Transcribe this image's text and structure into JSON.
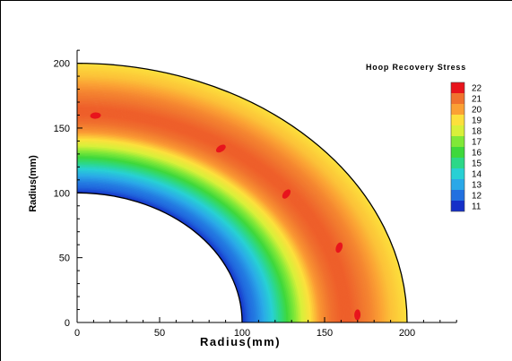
{
  "chart_data": {
    "type": "contour",
    "title": "Hoop Recovery Stress",
    "xlabel": "Radius(mm)",
    "ylabel": "Radius(mm)",
    "xlim": [
      0,
      230
    ],
    "ylim": [
      0,
      210
    ],
    "x_ticks": [
      0,
      50,
      100,
      150,
      200
    ],
    "y_ticks": [
      0,
      50,
      100,
      150,
      200
    ],
    "x_tick_labels": [
      "0",
      "50",
      "100",
      "150",
      "200"
    ],
    "y_tick_labels": [
      "0",
      "50",
      "100",
      "150",
      "200"
    ],
    "domain": {
      "shape": "quarter-annulus",
      "inner_radius": 100,
      "outer_radius": 200
    },
    "legend": {
      "placement": "right",
      "levels": [
        {
          "label": "22",
          "value": 22,
          "color": "#e8141c"
        },
        {
          "label": "21",
          "value": 21,
          "color": "#f0722e"
        },
        {
          "label": "20",
          "value": 20,
          "color": "#fba034"
        },
        {
          "label": "19",
          "value": 19,
          "color": "#fce03c"
        },
        {
          "label": "18",
          "value": 18,
          "color": "#d8f03a"
        },
        {
          "label": "17",
          "value": 17,
          "color": "#80e838"
        },
        {
          "label": "16",
          "value": 16,
          "color": "#3ed83c"
        },
        {
          "label": "15",
          "value": 15,
          "color": "#2cd888"
        },
        {
          "label": "14",
          "value": 14,
          "color": "#28d0d4"
        },
        {
          "label": "13",
          "value": 13,
          "color": "#2aa8e8"
        },
        {
          "label": "12",
          "value": 12,
          "color": "#2270e0"
        },
        {
          "label": "11",
          "value": 11,
          "color": "#1530c8"
        }
      ]
    },
    "radial_profile": [
      {
        "r": 100,
        "value": 11
      },
      {
        "r": 104,
        "value": 11.8
      },
      {
        "r": 108,
        "value": 12.2
      },
      {
        "r": 112,
        "value": 12.8
      },
      {
        "r": 116,
        "value": 13.5
      },
      {
        "r": 120,
        "value": 14.3
      },
      {
        "r": 124,
        "value": 15.2
      },
      {
        "r": 128,
        "value": 16.1
      },
      {
        "r": 132,
        "value": 17
      },
      {
        "r": 136,
        "value": 17.9
      },
      {
        "r": 140,
        "value": 18.7
      },
      {
        "r": 144,
        "value": 19.5
      },
      {
        "r": 148,
        "value": 20.3
      },
      {
        "r": 154,
        "value": 21
      },
      {
        "r": 160,
        "value": 21.2
      },
      {
        "r": 166,
        "value": 21.2
      },
      {
        "r": 172,
        "value": 21
      },
      {
        "r": 178,
        "value": 20.6
      },
      {
        "r": 184,
        "value": 20
      },
      {
        "r": 190,
        "value": 19.5
      },
      {
        "r": 196,
        "value": 19.2
      },
      {
        "r": 200,
        "value": 19
      }
    ],
    "hot_spots": [
      {
        "r": 160,
        "angle_deg": 86,
        "value": 22
      },
      {
        "r": 160,
        "angle_deg": 57,
        "value": 22
      },
      {
        "r": 161,
        "angle_deg": 38,
        "value": 22
      },
      {
        "r": 169,
        "angle_deg": 20,
        "value": 22
      },
      {
        "r": 170,
        "angle_deg": 2,
        "value": 22
      }
    ],
    "grid": false,
    "colors": {
      "boundary": "#000000",
      "axis": "#000000",
      "background": "#ffffff"
    }
  }
}
